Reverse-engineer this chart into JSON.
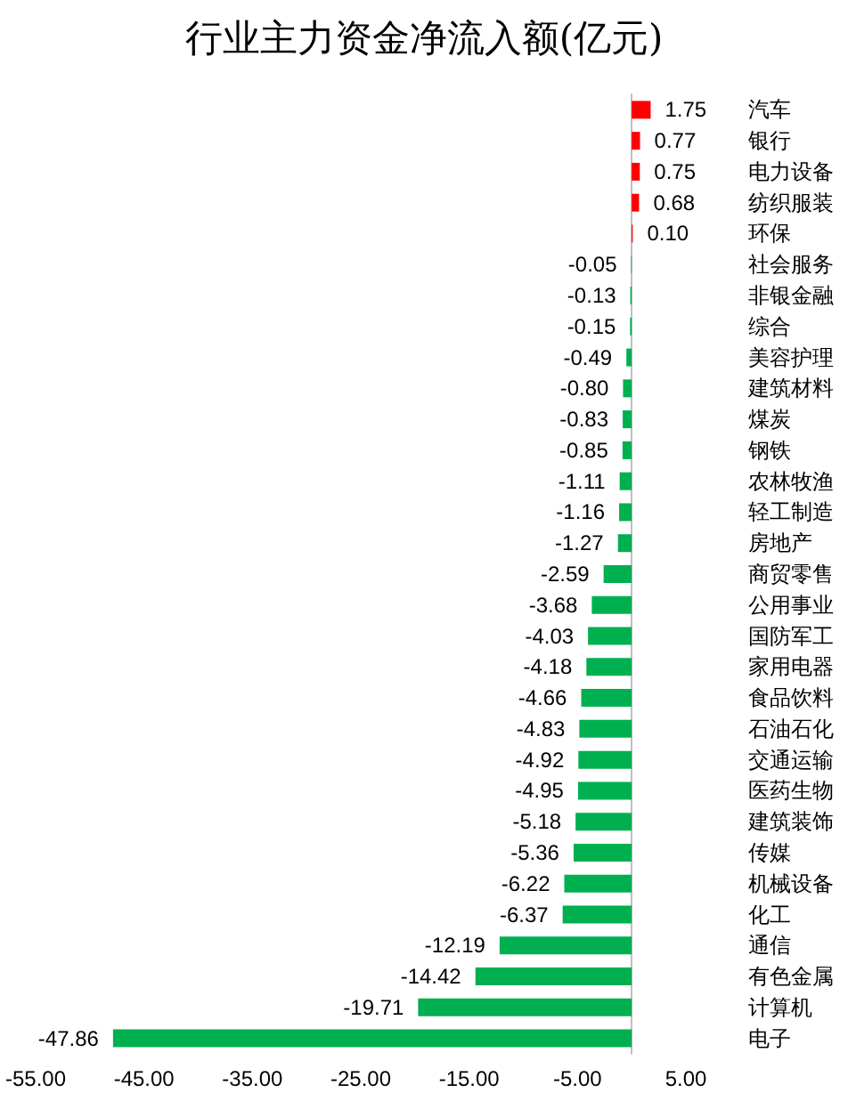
{
  "chart_data": {
    "type": "bar",
    "orientation": "horizontal",
    "title": "行业主力资金净流入额(亿元)",
    "categories": [
      "汽车",
      "银行",
      "电力设备",
      "纺织服装",
      "环保",
      "社会服务",
      "非银金融",
      "综合",
      "美容护理",
      "建筑材料",
      "煤炭",
      "钢铁",
      "农林牧渔",
      "轻工制造",
      "房地产",
      "商贸零售",
      "公用事业",
      "国防军工",
      "家用电器",
      "食品饮料",
      "石油石化",
      "交通运输",
      "医药生物",
      "建筑装饰",
      "传媒",
      "机械设备",
      "化工",
      "通信",
      "有色金属",
      "计算机",
      "电子"
    ],
    "values": [
      1.75,
      0.77,
      0.75,
      0.68,
      0.1,
      -0.05,
      -0.13,
      -0.15,
      -0.49,
      -0.8,
      -0.83,
      -0.85,
      -1.11,
      -1.16,
      -1.27,
      -2.59,
      -3.68,
      -4.03,
      -4.18,
      -4.66,
      -4.83,
      -4.92,
      -4.95,
      -5.18,
      -5.36,
      -6.22,
      -6.37,
      -12.19,
      -14.42,
      -19.71,
      -47.86
    ],
    "value_labels": [
      "1.75",
      "0.77",
      "0.75",
      "0.68",
      "0.10",
      "-0.05",
      "-0.13",
      "-0.15",
      "-0.49",
      "-0.80",
      "-0.83",
      "-0.85",
      "-1.11",
      "-1.16",
      "-1.27",
      "-2.59",
      "-3.68",
      "-4.03",
      "-4.18",
      "-4.66",
      "-4.83",
      "-4.92",
      "-4.95",
      "-5.18",
      "-5.36",
      "-6.22",
      "-6.37",
      "-12.19",
      "-14.42",
      "-19.71",
      "-47.86"
    ],
    "colors": [
      "#ff0000",
      "#ff0000",
      "#ff0000",
      "#ff0000",
      "#ff0000",
      "#00b050",
      "#00b050",
      "#00b050",
      "#00b050",
      "#00b050",
      "#00b050",
      "#00b050",
      "#00b050",
      "#00b050",
      "#00b050",
      "#00b050",
      "#00b050",
      "#00b050",
      "#00b050",
      "#00b050",
      "#00b050",
      "#00b050",
      "#00b050",
      "#00b050",
      "#00b050",
      "#00b050",
      "#00b050",
      "#00b050",
      "#00b050",
      "#00b050",
      "#00b050"
    ],
    "xlim": [
      -55,
      5
    ],
    "xticks": [
      {
        "value": -55,
        "label": "-55.00"
      },
      {
        "value": -45,
        "label": "-45.00"
      },
      {
        "value": -35,
        "label": "-35.00"
      },
      {
        "value": -25,
        "label": "-25.00"
      },
      {
        "value": -15,
        "label": "-15.00"
      },
      {
        "value": -5,
        "label": "-5.00"
      },
      {
        "value": 5,
        "label": "5.00"
      }
    ]
  }
}
